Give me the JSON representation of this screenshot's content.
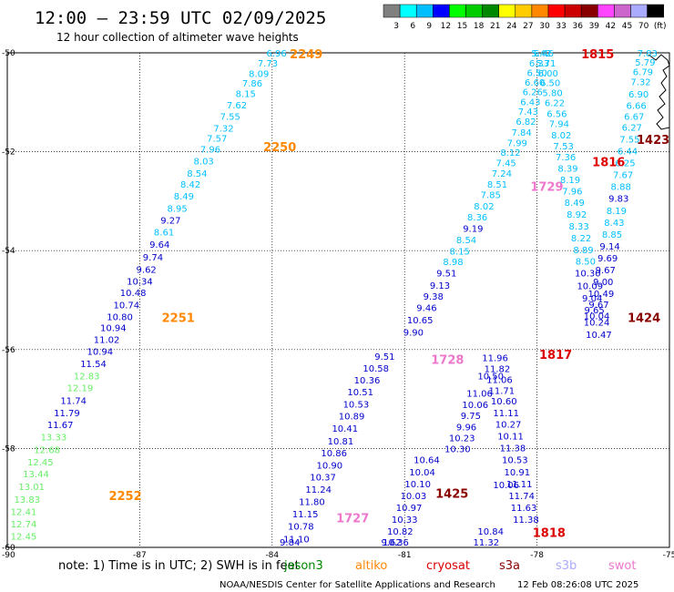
{
  "header": {
    "title": "12:00 — 23:59 UTC 02/09/2025",
    "subtitle": "12 hour collection of altimeter wave heights"
  },
  "colorbar": {
    "colors": [
      "#808080",
      "#00ffff",
      "#00bfff",
      "#0000ff",
      "#00ff00",
      "#00cc00",
      "#008800",
      "#ffff00",
      "#ffcc00",
      "#ff8800",
      "#ff0000",
      "#cc0000",
      "#880000",
      "#ff44ff",
      "#cc66cc",
      "#aaaaff",
      "#000000"
    ],
    "labels": [
      "3",
      "6",
      "9",
      "12",
      "15",
      "18",
      "21",
      "24",
      "27",
      "30",
      "33",
      "36",
      "39",
      "42",
      "45",
      "70",
      "(ft)"
    ]
  },
  "chart_data": {
    "type": "scatter",
    "xlabel": "",
    "ylabel": "",
    "xlim": [
      -90,
      -75
    ],
    "ylim": [
      -60,
      -50
    ],
    "x_ticks": [
      "-87",
      "-84",
      "-81",
      "-78",
      "-75"
    ],
    "x_corner_label": "-90",
    "y_ticks": [
      "-50",
      "-52",
      "-54",
      "-56",
      "-58",
      "-60"
    ],
    "grid": true,
    "point_colors": {
      "lt9": "#00bfff",
      "lt12": "#0000cc",
      "lt15": "#66ee66"
    },
    "tracks": [
      {
        "pass": "2249",
        "pass_color": "#ff8800",
        "label_at": [
          -83.6,
          -50.0
        ],
        "points": [
          [
            -83.9,
            -50.0,
            "6.96"
          ],
          [
            -84.1,
            -50.22,
            "7.73"
          ],
          [
            -84.3,
            -50.43,
            "8.09"
          ],
          [
            -84.45,
            -50.63,
            "7.86"
          ],
          [
            -84.6,
            -50.84,
            "8.15"
          ],
          [
            -84.8,
            -51.07,
            "7.62"
          ],
          [
            -84.95,
            -51.3,
            "7.55"
          ],
          [
            -85.1,
            -51.54,
            "7.32"
          ],
          [
            -85.25,
            -51.74,
            "7.57"
          ],
          [
            -85.4,
            -51.96,
            "7.96"
          ],
          [
            -85.55,
            -52.2,
            "8.03"
          ],
          [
            -85.7,
            -52.45,
            "8.54"
          ],
          [
            -85.85,
            -52.67,
            "8.42"
          ],
          [
            -86.0,
            -52.91,
            "8.49"
          ],
          [
            -86.15,
            -53.16,
            "8.95"
          ],
          [
            -86.3,
            -53.4,
            "9.27"
          ],
          [
            -86.45,
            -53.64,
            "8.61"
          ],
          [
            -86.55,
            -53.89,
            "9.64"
          ],
          [
            -86.7,
            -54.14,
            "9.74"
          ],
          [
            -86.85,
            -54.39,
            "9.62"
          ],
          [
            -87.0,
            -54.63,
            "10.34"
          ],
          [
            -87.15,
            -54.86,
            "10.48"
          ],
          [
            -87.3,
            -55.11,
            "10.74"
          ],
          [
            -87.45,
            -55.35,
            "10.80"
          ],
          [
            -87.6,
            -55.57,
            "10.94"
          ],
          [
            -87.75,
            -55.81,
            "11.02"
          ],
          [
            -87.9,
            -56.05,
            "10.94"
          ],
          [
            -88.05,
            -56.3,
            "11.54"
          ],
          [
            -88.2,
            -56.55,
            "12.83"
          ],
          [
            -88.35,
            -56.79,
            "12.19"
          ],
          [
            -88.5,
            -57.04,
            "11.74"
          ],
          [
            -88.65,
            -57.29,
            "11.79"
          ],
          [
            -88.8,
            -57.53,
            "11.67"
          ],
          [
            -88.95,
            -57.78,
            "13.33"
          ],
          [
            -89.1,
            -58.04,
            "12.68"
          ],
          [
            -89.25,
            -58.29,
            "12.45"
          ],
          [
            -89.35,
            -58.53,
            "13.44"
          ],
          [
            -89.45,
            -58.78,
            "13.01"
          ],
          [
            -89.55,
            -59.04,
            "13.83"
          ],
          [
            -89.65,
            -59.29,
            "12.41"
          ],
          [
            -89.75,
            -59.54,
            "12.74"
          ],
          [
            -89.85,
            -59.79,
            "12.45"
          ]
        ]
      },
      {
        "pass": "2250",
        "pass_color": "#ff8800",
        "label_at": [
          -84.2,
          -51.9
        ],
        "points": []
      },
      {
        "pass": "2251",
        "pass_color": "#ff8800",
        "label_at": [
          -86.5,
          -55.35
        ],
        "points": []
      },
      {
        "pass": "2252",
        "pass_color": "#ff8800",
        "label_at": [
          -87.7,
          -58.95
        ],
        "points": []
      },
      {
        "pass": "1727",
        "pass_color": "#ee77cc",
        "label_at": [
          -82.55,
          -59.4
        ],
        "points": [
          [
            -81.45,
            -56.15,
            "9.51"
          ],
          [
            -81.65,
            -56.39,
            "10.58"
          ],
          [
            -81.85,
            -56.63,
            "10.36"
          ],
          [
            -82.0,
            -56.87,
            "10.51"
          ],
          [
            -82.1,
            -57.12,
            "10.53"
          ],
          [
            -82.2,
            -57.36,
            "10.89"
          ],
          [
            -82.35,
            -57.61,
            "10.41"
          ],
          [
            -82.45,
            -57.86,
            "10.81"
          ],
          [
            -82.6,
            -58.1,
            "10.86"
          ],
          [
            -82.7,
            -58.35,
            "10.90"
          ],
          [
            -82.85,
            -58.59,
            "10.37"
          ],
          [
            -82.95,
            -58.84,
            "11.24"
          ],
          [
            -83.1,
            -59.09,
            "11.80"
          ],
          [
            -83.25,
            -59.34,
            "11.15"
          ],
          [
            -83.35,
            -59.59,
            "10.78"
          ],
          [
            -83.45,
            -59.84,
            "11.10"
          ],
          [
            -83.6,
            -60.1,
            "9.84"
          ]
        ]
      },
      {
        "pass": "1728",
        "pass_color": "#ee77cc",
        "label_at": [
          -80.4,
          -56.2
        ],
        "points": [
          [
            -77.9,
            -50.0,
            "5.42"
          ],
          [
            -77.95,
            -50.22,
            "6.33"
          ],
          [
            -78.0,
            -50.41,
            "6.50"
          ],
          [
            -78.05,
            -50.61,
            "6.60"
          ],
          [
            -78.1,
            -50.8,
            "6.26"
          ],
          [
            -78.15,
            -51.0,
            "6.43"
          ],
          [
            -78.2,
            -51.2,
            "7.43"
          ],
          [
            -78.25,
            -51.4,
            "6.82"
          ],
          [
            -78.35,
            -51.62,
            "7.84"
          ],
          [
            -78.45,
            -51.83,
            "7.99"
          ],
          [
            -78.6,
            -52.03,
            "8.12"
          ],
          [
            -78.7,
            -52.24,
            "7.45"
          ],
          [
            -78.8,
            -52.45,
            "7.24"
          ],
          [
            -78.9,
            -52.67,
            "8.51"
          ],
          [
            -79.05,
            -52.88,
            "7.85"
          ],
          [
            -79.2,
            -53.11,
            "8.02"
          ],
          [
            -79.35,
            -53.33,
            "8.36"
          ],
          [
            -79.45,
            -53.56,
            "9.19"
          ],
          [
            -79.6,
            -53.79,
            "8.54"
          ],
          [
            -79.75,
            -54.02,
            "8.15"
          ],
          [
            -79.9,
            -54.24,
            "8.98"
          ],
          [
            -80.05,
            -54.47,
            "9.51"
          ],
          [
            -80.2,
            -54.71,
            "9.13"
          ],
          [
            -80.35,
            -54.94,
            "9.38"
          ],
          [
            -80.5,
            -55.17,
            "9.46"
          ],
          [
            -80.65,
            -55.41,
            "10.65"
          ],
          [
            -80.8,
            -55.66,
            "9.90"
          ]
        ]
      },
      {
        "pass": "1729",
        "pass_color": "#ee77cc",
        "label_at": [
          -78.15,
          -52.7
        ],
        "points": []
      },
      {
        "pass": "1816",
        "pass_color": "#dd0000",
        "label_at": [
          -76.75,
          -52.2
        ],
        "points": [
          [
            -77.85,
            -50.0,
            "6.46"
          ],
          [
            -77.8,
            -50.22,
            "5.71"
          ],
          [
            -77.75,
            -50.42,
            "6.00"
          ],
          [
            -77.7,
            -50.62,
            "6.50"
          ],
          [
            -77.65,
            -50.82,
            "5.80"
          ],
          [
            -77.6,
            -51.02,
            "6.22"
          ],
          [
            -77.55,
            -51.24,
            "6.56"
          ],
          [
            -77.5,
            -51.45,
            "7.94"
          ],
          [
            -77.45,
            -51.68,
            "8.02"
          ],
          [
            -77.4,
            -51.9,
            "7.53"
          ],
          [
            -77.35,
            -52.12,
            "7.36"
          ],
          [
            -77.3,
            -52.35,
            "8.39"
          ],
          [
            -77.25,
            -52.58,
            "8.19"
          ],
          [
            -77.2,
            -52.81,
            "7.96"
          ],
          [
            -77.15,
            -53.04,
            "8.49"
          ],
          [
            -77.1,
            -53.28,
            "8.92"
          ],
          [
            -77.05,
            -53.52,
            "8.33"
          ],
          [
            -77.0,
            -53.76,
            "8.22"
          ],
          [
            -76.95,
            -54.0,
            "8.89"
          ],
          [
            -76.9,
            -54.23,
            "8.50"
          ],
          [
            -76.85,
            -54.47,
            "10.30"
          ],
          [
            -76.8,
            -54.72,
            "10.09"
          ],
          [
            -76.75,
            -54.97,
            "9.04"
          ],
          [
            -76.7,
            -55.21,
            "9.65"
          ],
          [
            -76.65,
            -55.46,
            "10.24"
          ],
          [
            -76.6,
            -55.71,
            "10.47"
          ]
        ]
      },
      {
        "pass": "1817",
        "pass_color": "#dd0000",
        "label_at": [
          -77.95,
          -56.1
        ],
        "points": [
          [
            -78.95,
            -56.18,
            "11.96"
          ],
          [
            -78.9,
            -56.4,
            "11.82"
          ],
          [
            -78.85,
            -56.62,
            "11.06"
          ],
          [
            -78.8,
            -56.84,
            "11.71"
          ],
          [
            -78.75,
            -57.05,
            "10.60"
          ],
          [
            -78.7,
            -57.29,
            "11.11"
          ],
          [
            -78.65,
            -57.52,
            "10.27"
          ],
          [
            -78.6,
            -57.76,
            "10.11"
          ],
          [
            -78.55,
            -58.0,
            "11.38"
          ],
          [
            -78.5,
            -58.24,
            "10.53"
          ],
          [
            -78.45,
            -58.49,
            "10.91"
          ],
          [
            -78.4,
            -58.73,
            "11.11"
          ],
          [
            -78.35,
            -58.97,
            "11.74"
          ],
          [
            -78.3,
            -59.21,
            "11.63"
          ],
          [
            -78.25,
            -59.45,
            "11.38"
          ]
        ]
      },
      {
        "pass": "1818",
        "pass_color": "#dd0000",
        "label_at": [
          -78.1,
          -59.7
        ],
        "points": [
          [
            -79.05,
            -59.69,
            "10.84"
          ],
          [
            -79.15,
            -59.93,
            "11.32"
          ]
        ]
      },
      {
        "pass": "1815",
        "pass_color": "#dd0000",
        "label_at": [
          -77.0,
          -50.0
        ],
        "points": []
      },
      {
        "pass": "1423",
        "pass_color": "#880000",
        "label_at": [
          -75.65,
          -51.75
        ],
        "points": [
          [
            -75.5,
            -50.0,
            "7.83"
          ],
          [
            -75.55,
            -50.2,
            "5.79"
          ],
          [
            -75.6,
            -50.4,
            "6.79"
          ],
          [
            -75.65,
            -50.6,
            "7.32"
          ],
          [
            -75.7,
            -50.85,
            "6.90"
          ],
          [
            -75.75,
            -51.08,
            "6.66"
          ],
          [
            -75.8,
            -51.3,
            "6.67"
          ],
          [
            -75.85,
            -51.52,
            "6.27"
          ],
          [
            -75.9,
            -51.76,
            "7.55"
          ],
          [
            -75.95,
            -52.0,
            "6.44"
          ],
          [
            -76.0,
            -52.24,
            "6.25"
          ],
          [
            -76.05,
            -52.48,
            "7.67"
          ],
          [
            -76.1,
            -52.72,
            "8.88"
          ],
          [
            -76.15,
            -52.96,
            "9.83"
          ],
          [
            -76.2,
            -53.2,
            "8.19"
          ],
          [
            -76.25,
            -53.44,
            "8.43"
          ],
          [
            -76.3,
            -53.68,
            "8.85"
          ],
          [
            -76.35,
            -53.92,
            "9.14"
          ],
          [
            -76.4,
            -54.16,
            "9.69"
          ],
          [
            -76.45,
            -54.4,
            "9.67"
          ],
          [
            -76.5,
            -54.64,
            "9.00"
          ],
          [
            -76.55,
            -54.88,
            "10.49"
          ],
          [
            -76.6,
            -55.1,
            "9.67"
          ],
          [
            -76.65,
            -55.33,
            "10.04"
          ]
        ]
      },
      {
        "pass": "1424",
        "pass_color": "#880000",
        "label_at": [
          -75.95,
          -55.35
        ],
        "points": []
      },
      {
        "pass": "1425",
        "pass_color": "#880000",
        "label_at": [
          -80.3,
          -58.9
        ],
        "points": [
          [
            -80.5,
            -58.24,
            "10.64"
          ],
          [
            -80.6,
            -58.49,
            "10.04"
          ],
          [
            -80.7,
            -58.73,
            "10.10"
          ],
          [
            -80.8,
            -58.97,
            "10.03"
          ],
          [
            -80.9,
            -59.21,
            "10.97"
          ],
          [
            -81.0,
            -59.45,
            "10.33"
          ],
          [
            -81.1,
            -59.69,
            "10.82"
          ],
          [
            -81.2,
            -59.94,
            "10.36"
          ],
          [
            -81.3,
            -60.17,
            "9.62"
          ]
        ]
      },
      {
        "pass": "",
        "pass_color": "#000000",
        "label_at": [
          -78.0,
          -56.0
        ],
        "points": [
          [
            -79.05,
            -56.55,
            "10.50"
          ],
          [
            -79.3,
            -56.9,
            "11.06"
          ],
          [
            -79.4,
            -57.13,
            "10.06"
          ],
          [
            -79.5,
            -57.35,
            "9.75"
          ],
          [
            -79.6,
            -57.58,
            "9.96"
          ],
          [
            -79.7,
            -57.8,
            "10.23"
          ],
          [
            -79.8,
            -58.02,
            "10.30"
          ],
          [
            -78.7,
            -58.75,
            "10.06"
          ]
        ]
      }
    ],
    "pass_label_colors_by_mission": true
  },
  "footer": {
    "note": "note:  1) Time is in UTC;  2) SWH is in feet",
    "missions": [
      {
        "name": "jason3",
        "color": "#008800"
      },
      {
        "name": "altiko",
        "color": "#ff8800"
      },
      {
        "name": "cryosat",
        "color": "#dd0000"
      },
      {
        "name": "s3a",
        "color": "#880000"
      },
      {
        "name": "s3b",
        "color": "#aaaaff"
      },
      {
        "name": "swot",
        "color": "#ee77cc"
      }
    ],
    "credit": "NOAA/NESDIS Center for Satellite Applications and Research",
    "timestamp": "12 Feb 08:26:08 UTC 2025"
  }
}
